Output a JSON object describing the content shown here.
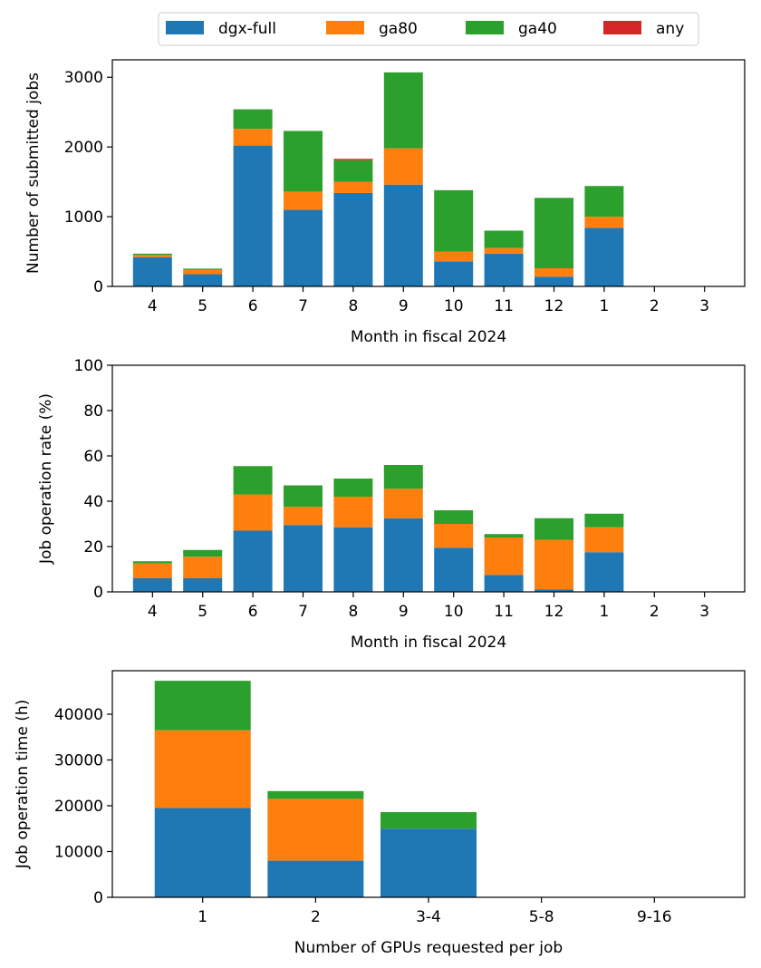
{
  "legend": {
    "placement": "top-center",
    "entries": [
      {
        "label": "dgx-full",
        "color": "#1f77b4"
      },
      {
        "label": "ga80",
        "color": "#ff7f0e"
      },
      {
        "label": "ga40",
        "color": "#2ca02c"
      },
      {
        "label": "any",
        "color": "#d62728"
      }
    ]
  },
  "chart_data": [
    {
      "type": "bar",
      "stacked": true,
      "xlabel": "Month in fiscal 2024",
      "ylabel": "Number of submitted jobs",
      "ylim": [
        0,
        3250
      ],
      "yticks": [
        0,
        1000,
        2000,
        3000
      ],
      "categories": [
        "4",
        "5",
        "6",
        "7",
        "8",
        "9",
        "10",
        "11",
        "12",
        "1",
        "2",
        "3"
      ],
      "series": [
        {
          "name": "dgx-full",
          "values": [
            420,
            175,
            2020,
            1100,
            1340,
            1460,
            360,
            470,
            140,
            840,
            0,
            0
          ]
        },
        {
          "name": "ga80",
          "values": [
            30,
            65,
            240,
            260,
            160,
            520,
            140,
            80,
            120,
            160,
            0,
            0
          ]
        },
        {
          "name": "ga40",
          "values": [
            20,
            15,
            280,
            870,
            310,
            1090,
            880,
            250,
            1010,
            440,
            0,
            0
          ]
        },
        {
          "name": "any",
          "values": [
            0,
            0,
            0,
            0,
            20,
            0,
            0,
            0,
            0,
            0,
            0,
            0
          ]
        }
      ]
    },
    {
      "type": "bar",
      "stacked": true,
      "xlabel": "Month in fiscal 2024",
      "ylabel": "Job operation rate (%)",
      "ylim": [
        0,
        100
      ],
      "yticks": [
        0,
        20,
        40,
        60,
        80,
        100
      ],
      "categories": [
        "4",
        "5",
        "6",
        "7",
        "8",
        "9",
        "10",
        "11",
        "12",
        "1",
        "2",
        "3"
      ],
      "series": [
        {
          "name": "dgx-full",
          "values": [
            6,
            6,
            27,
            29.5,
            28.5,
            32.5,
            19.5,
            7.5,
            1,
            17.5,
            0,
            0
          ]
        },
        {
          "name": "ga80",
          "values": [
            6.5,
            9.5,
            16,
            8,
            13.5,
            13,
            10.5,
            16.5,
            22,
            11,
            0,
            0
          ]
        },
        {
          "name": "ga40",
          "values": [
            1,
            3,
            12.5,
            9.5,
            8,
            10.5,
            6,
            1.5,
            9.5,
            6,
            0,
            0
          ]
        },
        {
          "name": "any",
          "values": [
            0,
            0,
            0,
            0,
            0,
            0,
            0,
            0,
            0,
            0,
            0,
            0
          ]
        }
      ]
    },
    {
      "type": "bar",
      "stacked": true,
      "xlabel": "Number of GPUs requested per job",
      "ylabel": "Job operation time (h)",
      "ylim": [
        0,
        49500
      ],
      "yticks": [
        0,
        10000,
        20000,
        30000,
        40000
      ],
      "categories": [
        "1",
        "2",
        "3-4",
        "5-8",
        "9-16"
      ],
      "series": [
        {
          "name": "dgx-full",
          "values": [
            19500,
            8000,
            15000,
            100,
            0
          ]
        },
        {
          "name": "ga80",
          "values": [
            17000,
            13500,
            0,
            0,
            0
          ]
        },
        {
          "name": "ga40",
          "values": [
            10800,
            1700,
            3600,
            0,
            0
          ]
        },
        {
          "name": "any",
          "values": [
            0,
            0,
            0,
            0,
            0
          ]
        }
      ]
    }
  ]
}
